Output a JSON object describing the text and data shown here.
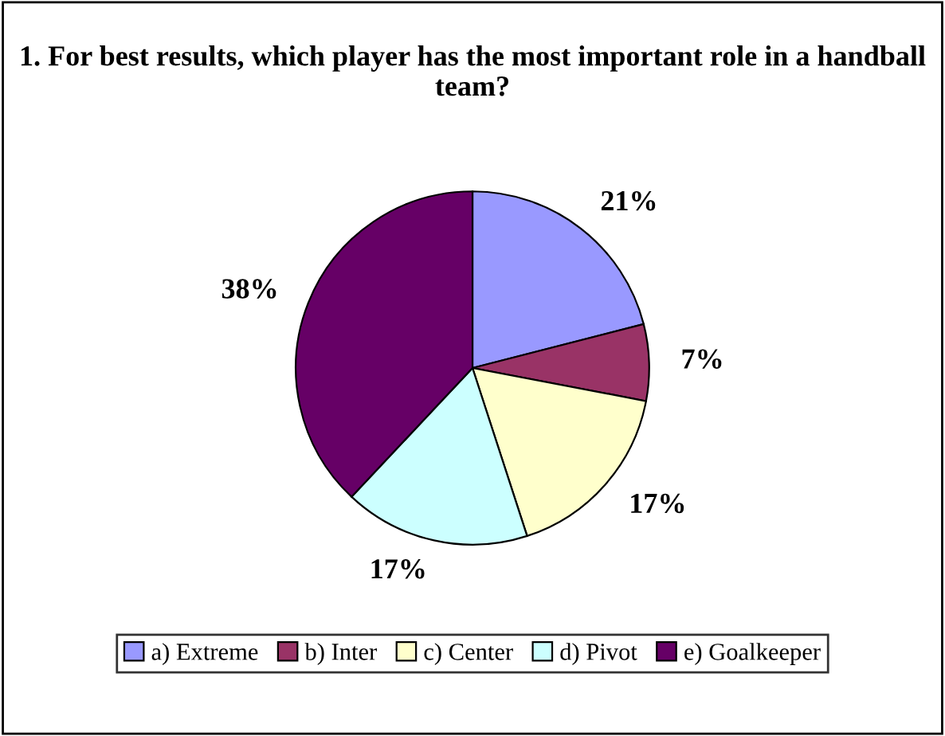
{
  "chart_data": {
    "type": "pie",
    "title": "1. For best results, which player has the most important role in a handball team?",
    "categories": [
      "a) Extreme",
      "b) Inter",
      "c) Center",
      "d) Pivot",
      "e) Goalkeeper"
    ],
    "values": [
      21,
      7,
      17,
      17,
      38
    ],
    "colors": [
      "#9999ff",
      "#993366",
      "#ffffcc",
      "#ccffff",
      "#660066"
    ],
    "value_labels": [
      "21%",
      "7%",
      "17%",
      "17%",
      "38%"
    ],
    "legend": "bottom"
  }
}
